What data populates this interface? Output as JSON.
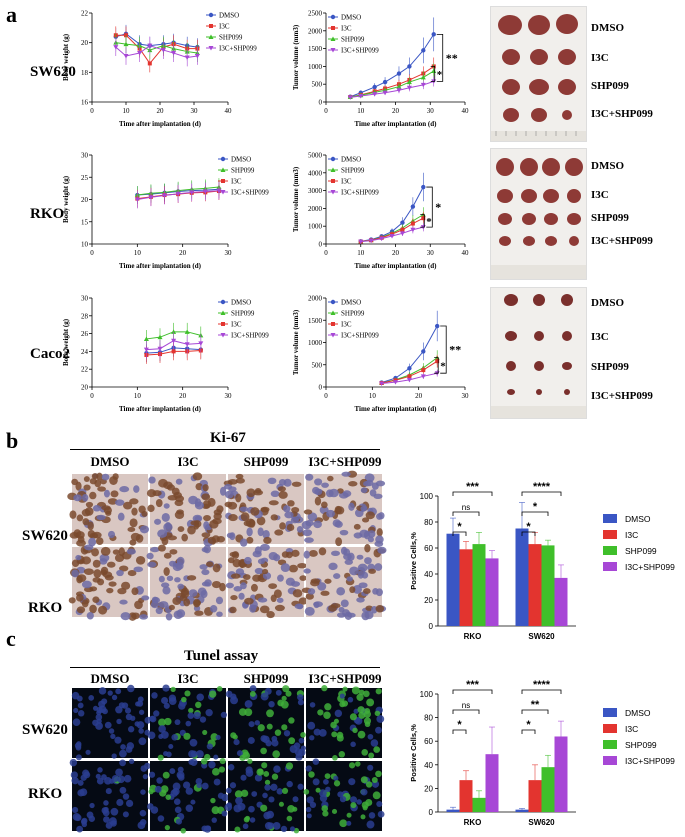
{
  "panels": {
    "a": "a",
    "b": "b",
    "c": "c"
  },
  "cell_lines_a": [
    "SW620",
    "RKO",
    "Caco2"
  ],
  "tumor_photo_labels": [
    [
      "DMSO",
      "I3C",
      "SHP099",
      "I3C+SHP099"
    ],
    [
      "DMSO",
      "I3C",
      "SHP099",
      "I3C+SHP099"
    ],
    [
      "DMSO",
      "I3C",
      "SHP099",
      "I3C+SHP099"
    ]
  ],
  "ki67": {
    "title": "Ki-67",
    "columns": [
      "DMSO",
      "I3C",
      "SHP099",
      "I3C+SHP099"
    ],
    "rows": [
      "SW620",
      "RKO"
    ]
  },
  "tunel": {
    "title": "Tunel assay",
    "columns": [
      "DMSO",
      "I3C",
      "SHP099",
      "I3C+SHP099"
    ],
    "rows": [
      "SW620",
      "RKO"
    ]
  },
  "colors": {
    "DMSO": "#3a56c4",
    "I3C": "#e3342f",
    "SHP099": "#3fbf2a",
    "I3C+SHP099": "#a747d6"
  },
  "chart_data": [
    {
      "id": "sw620-bw",
      "type": "line",
      "xlabel": "Time after implantation (d)",
      "ylabel": "Body weight (g)",
      "xlim": [
        0,
        40
      ],
      "ylim": [
        16,
        22
      ],
      "xticks": [
        0,
        10,
        20,
        30,
        40
      ],
      "yticks": [
        16,
        18,
        20,
        22
      ],
      "x": [
        7,
        10,
        14,
        17,
        21,
        24,
        28,
        31
      ],
      "legend": [
        "DMSO",
        "I3C",
        "SHP099",
        "I3C+SHP099"
      ],
      "series": [
        {
          "name": "DMSO",
          "values": [
            20.4,
            20.6,
            19.9,
            19.8,
            19.9,
            20.0,
            19.8,
            19.7
          ]
        },
        {
          "name": "I3C",
          "values": [
            20.5,
            20.5,
            19.6,
            18.6,
            19.7,
            19.9,
            19.6,
            19.6
          ]
        },
        {
          "name": "SHP099",
          "values": [
            20.0,
            19.9,
            19.8,
            19.5,
            19.8,
            19.6,
            19.4,
            19.3
          ]
        },
        {
          "name": "I3C+SHP099",
          "values": [
            19.7,
            19.1,
            19.3,
            19.8,
            19.5,
            19.3,
            19.0,
            19.1
          ]
        }
      ]
    },
    {
      "id": "sw620-tv",
      "type": "line",
      "xlabel": "Time after implantation (d)",
      "ylabel": "Tumor volume (mm3)",
      "xlim": [
        0,
        40
      ],
      "ylim": [
        0,
        2500
      ],
      "xticks": [
        0,
        10,
        20,
        30,
        40
      ],
      "yticks": [
        0,
        500,
        1000,
        1500,
        2000,
        2500
      ],
      "x": [
        7,
        10,
        14,
        17,
        21,
        24,
        28,
        31
      ],
      "legend": [
        "DMSO",
        "I3C",
        "SHP099",
        "I3C+SHP099"
      ],
      "significance": [
        "**",
        "*"
      ],
      "series": [
        {
          "name": "DMSO",
          "values": [
            150,
            260,
            420,
            560,
            800,
            1000,
            1450,
            1900
          ]
        },
        {
          "name": "I3C",
          "values": [
            140,
            200,
            300,
            380,
            500,
            620,
            800,
            1000
          ]
        },
        {
          "name": "SHP099",
          "values": [
            140,
            190,
            270,
            330,
            430,
            560,
            690,
            870
          ]
        },
        {
          "name": "I3C+SHP099",
          "values": [
            130,
            170,
            220,
            260,
            330,
            400,
            480,
            580
          ]
        }
      ]
    },
    {
      "id": "rko-bw",
      "type": "line",
      "xlabel": "Time after implantation (d)",
      "ylabel": "Body weight (g)",
      "xlim": [
        0,
        30
      ],
      "ylim": [
        10,
        30
      ],
      "xticks": [
        0,
        10,
        20,
        30
      ],
      "yticks": [
        10,
        15,
        20,
        25,
        30
      ],
      "x": [
        10,
        13,
        16,
        19,
        22,
        25,
        28
      ],
      "legend": [
        "DMSO",
        "SHP099",
        "I3C",
        "I3C+SHP099"
      ],
      "series": [
        {
          "name": "DMSO",
          "values": [
            21.0,
            21.2,
            21.5,
            21.8,
            22.0,
            22.1,
            22.3
          ]
        },
        {
          "name": "SHP099",
          "values": [
            21.0,
            21.4,
            21.6,
            22.0,
            22.3,
            22.5,
            22.8
          ]
        },
        {
          "name": "I3C",
          "values": [
            20.2,
            20.6,
            21.0,
            21.2,
            21.5,
            21.6,
            21.9
          ]
        },
        {
          "name": "I3C+SHP099",
          "values": [
            20.0,
            20.5,
            20.9,
            21.3,
            21.6,
            21.8,
            22.0
          ]
        }
      ]
    },
    {
      "id": "rko-tv",
      "type": "line",
      "xlabel": "Time after implantation (d)",
      "ylabel": "Tumor volume (mm3)",
      "xlim": [
        0,
        40
      ],
      "ylim": [
        0,
        5000
      ],
      "xticks": [
        0,
        10,
        20,
        30,
        40
      ],
      "yticks": [
        0,
        1000,
        2000,
        3000,
        4000,
        5000
      ],
      "x": [
        10,
        13,
        16,
        19,
        22,
        25,
        28
      ],
      "legend": [
        "DMSO",
        "SHP099",
        "I3C",
        "I3C+SHP099"
      ],
      "significance": [
        "*",
        "*"
      ],
      "series": [
        {
          "name": "DMSO",
          "values": [
            150,
            250,
            430,
            700,
            1200,
            2100,
            3200
          ]
        },
        {
          "name": "SHP099",
          "values": [
            140,
            220,
            380,
            600,
            900,
            1300,
            1650
          ]
        },
        {
          "name": "I3C",
          "values": [
            140,
            210,
            350,
            550,
            800,
            1150,
            1450
          ]
        },
        {
          "name": "I3C+SHP099",
          "values": [
            130,
            190,
            300,
            450,
            600,
            800,
            950
          ]
        }
      ]
    },
    {
      "id": "caco2-bw",
      "type": "line",
      "xlabel": "Time after implantation (d)",
      "ylabel": "Body weight (g)",
      "xlim": [
        0,
        30
      ],
      "ylim": [
        20,
        30
      ],
      "xticks": [
        0,
        10,
        20,
        30
      ],
      "yticks": [
        20,
        22,
        24,
        26,
        28,
        30
      ],
      "x": [
        12,
        15,
        18,
        21,
        24
      ],
      "legend": [
        "DMSO",
        "SHP099",
        "I3C",
        "I3C+SHP099"
      ],
      "series": [
        {
          "name": "DMSO",
          "values": [
            23.8,
            23.9,
            24.4,
            24.3,
            24.2
          ]
        },
        {
          "name": "SHP099",
          "values": [
            25.4,
            25.6,
            26.2,
            26.2,
            25.8
          ]
        },
        {
          "name": "I3C",
          "values": [
            23.6,
            23.7,
            24.0,
            24.0,
            24.1
          ]
        },
        {
          "name": "I3C+SHP099",
          "values": [
            24.2,
            24.3,
            25.2,
            24.8,
            24.9
          ]
        }
      ]
    },
    {
      "id": "caco2-tv",
      "type": "line",
      "xlabel": "Time after implantation (d)",
      "ylabel": "Tumor volume (mm3)",
      "xlim": [
        0,
        30
      ],
      "ylim": [
        0,
        2000
      ],
      "xticks": [
        0,
        10,
        20,
        30
      ],
      "yticks": [
        0,
        500,
        1000,
        1500,
        2000
      ],
      "x": [
        12,
        15,
        18,
        21,
        24
      ],
      "legend": [
        "DMSO",
        "SHP099",
        "I3C",
        "I3C+SHP099"
      ],
      "significance": [
        "**",
        "*"
      ],
      "series": [
        {
          "name": "DMSO",
          "values": [
            100,
            200,
            420,
            800,
            1370
          ]
        },
        {
          "name": "SHP099",
          "values": [
            90,
            160,
            270,
            430,
            660
          ]
        },
        {
          "name": "I3C",
          "values": [
            90,
            150,
            240,
            380,
            580
          ]
        },
        {
          "name": "I3C+SHP099",
          "values": [
            80,
            110,
            160,
            240,
            310
          ]
        }
      ]
    },
    {
      "id": "ki67-bar",
      "type": "bar",
      "categories": [
        "RKO",
        "SW620"
      ],
      "ylabel": "Positive Cells,%",
      "ylim": [
        0,
        100
      ],
      "yticks": [
        0,
        20,
        40,
        60,
        80,
        100
      ],
      "legend": [
        "DMSO",
        "I3C",
        "SHP099",
        "I3C+SHP099"
      ],
      "series": [
        {
          "name": "DMSO",
          "values": [
            71,
            75
          ],
          "err": [
            12,
            20
          ]
        },
        {
          "name": "I3C",
          "values": [
            59,
            63
          ],
          "err": [
            6,
            9
          ]
        },
        {
          "name": "SHP099",
          "values": [
            63,
            62
          ],
          "err": [
            9,
            4
          ]
        },
        {
          "name": "I3C+SHP099",
          "values": [
            52,
            37
          ],
          "err": [
            6,
            10
          ]
        }
      ],
      "significance": {
        "RKO": [
          "***",
          "ns",
          "*"
        ],
        "SW620": [
          "****",
          "*",
          "*"
        ]
      }
    },
    {
      "id": "tunel-bar",
      "type": "bar",
      "categories": [
        "RKO",
        "SW620"
      ],
      "ylabel": "Positive Cells,%",
      "ylim": [
        0,
        100
      ],
      "yticks": [
        0,
        20,
        40,
        60,
        80,
        100
      ],
      "legend": [
        "DMSO",
        "I3C",
        "SHP099",
        "I3C+SHP099"
      ],
      "series": [
        {
          "name": "DMSO",
          "values": [
            2,
            2
          ],
          "err": [
            2,
            1
          ]
        },
        {
          "name": "I3C",
          "values": [
            27,
            27
          ],
          "err": [
            8,
            13
          ]
        },
        {
          "name": "SHP099",
          "values": [
            12,
            38
          ],
          "err": [
            6,
            10
          ]
        },
        {
          "name": "I3C+SHP099",
          "values": [
            49,
            64
          ],
          "err": [
            23,
            13
          ]
        }
      ],
      "significance": {
        "RKO": [
          "***",
          "ns",
          "*"
        ],
        "SW620": [
          "****",
          "**",
          "*"
        ]
      }
    }
  ]
}
